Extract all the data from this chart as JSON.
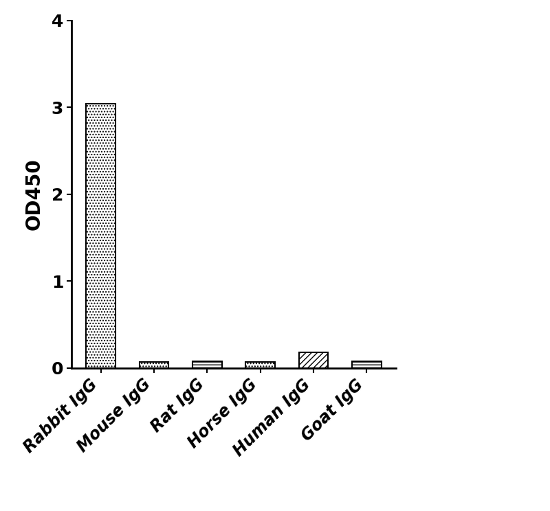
{
  "categories": [
    "Rabbit IgG",
    "Mouse IgG",
    "Rat IgG",
    "Horse IgG",
    "Human IgG",
    "Goat IgG"
  ],
  "values": [
    3.04,
    0.07,
    0.075,
    0.065,
    0.18,
    0.075
  ],
  "hatches": [
    "....",
    "....",
    "---",
    "....",
    "////",
    "----"
  ],
  "bar_facecolors": [
    "#808080",
    "#c0c0c0",
    "#d0d0d0",
    "#c0c0c0",
    "#d0d0d0",
    "#c0c0c0"
  ],
  "edge_colors": [
    "black",
    "black",
    "black",
    "black",
    "black",
    "black"
  ],
  "ylabel": "OD450",
  "ylim": [
    0,
    4
  ],
  "yticks": [
    0,
    1,
    2,
    3,
    4
  ],
  "background_color": "white",
  "bar_width": 0.55,
  "ylabel_fontsize": 20,
  "tick_fontsize": 18,
  "xlabel_fontsize": 17
}
